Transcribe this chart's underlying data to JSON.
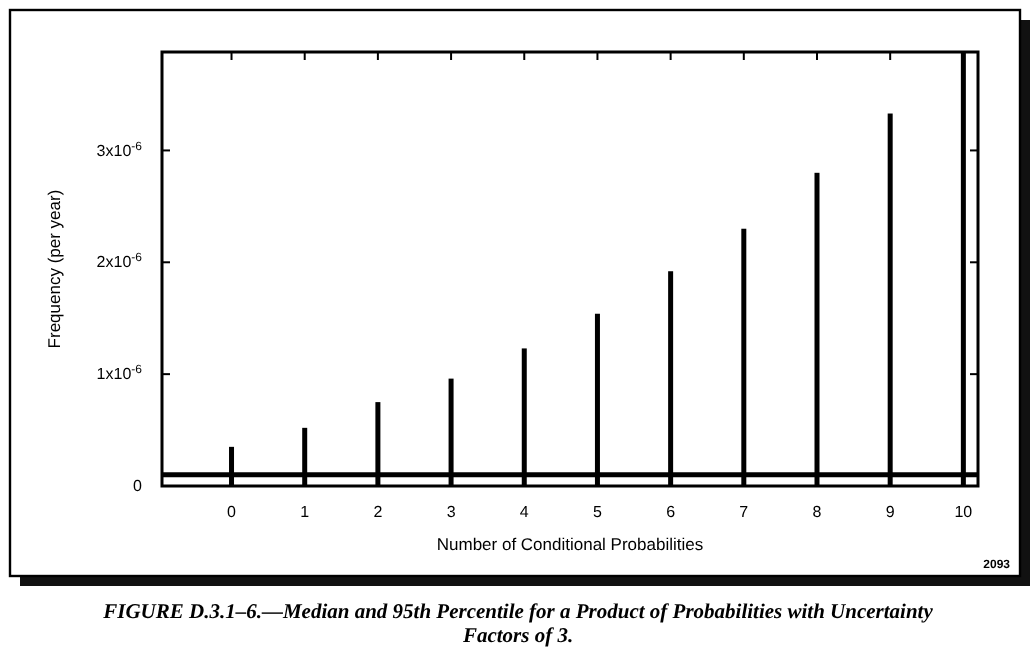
{
  "chart_data": {
    "type": "bar",
    "title": "FIGURE D.3.1–6.—Median and 95th Percentile for a Product of Probabilities with Uncertainty Factors of 3.",
    "xlabel": "Number of Conditional Probabilities",
    "ylabel": "Frequency (per year)",
    "x": [
      0,
      1,
      2,
      3,
      4,
      5,
      6,
      7,
      8,
      9,
      10
    ],
    "values": [
      3.5e-07,
      5.2e-07,
      7.5e-07,
      9.6e-07,
      1.23e-06,
      1.54e-06,
      1.92e-06,
      2.3e-06,
      2.8e-06,
      3.33e-06,
      3.88e-06
    ],
    "color": "#000000",
    "xlim": [
      -0.95,
      10.2
    ],
    "xticks": [
      0,
      1,
      2,
      3,
      4,
      5,
      6,
      7,
      8,
      9,
      10
    ],
    "ylim": [
      0,
      3.88e-06
    ],
    "yticks": [
      0,
      {
        "value": 1e-06,
        "label": "1x10$^{-6}$"
      },
      {
        "value": 2e-06,
        "label": "2x10$^{-6}$"
      },
      {
        "value": 3e-06,
        "label": "3x10$^{-6}$"
      }
    ],
    "ref_lines": [
      {
        "axis": "y",
        "value": 1e-07,
        "color": "#000000"
      }
    ],
    "annotations": [
      "2093"
    ],
    "grid": false
  }
}
